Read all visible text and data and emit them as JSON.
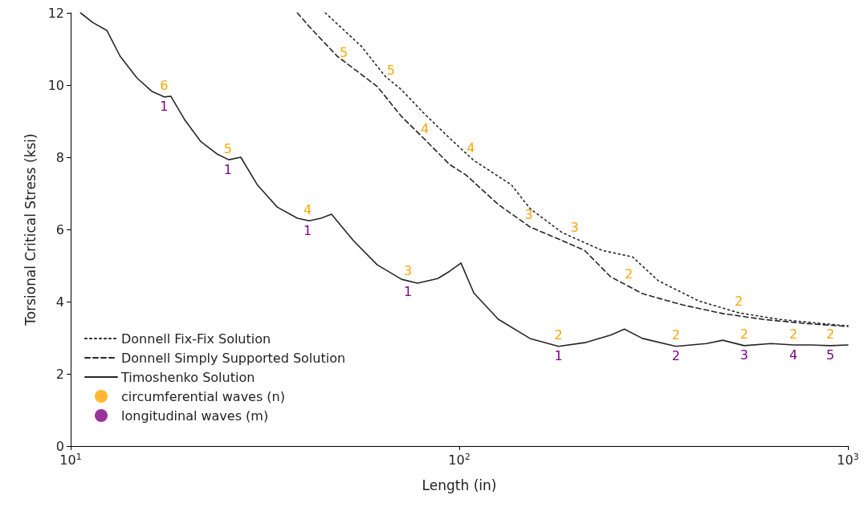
{
  "chart_data": {
    "type": "line",
    "xlabel": "Length (in)",
    "ylabel": "Torsional Critical Stress (ksi)",
    "log": "x",
    "grid": false,
    "legend": "bottom left",
    "xlim": [
      10,
      1000
    ],
    "xticks": [
      {
        "value": 10,
        "label": "10$^{1}$"
      },
      {
        "value": 100,
        "label": "10$^{2}$"
      },
      {
        "value": 1000,
        "label": "10$^{3}$"
      }
    ],
    "ylim": [
      0,
      12
    ],
    "yticks": [
      0,
      2,
      4,
      6,
      8,
      10,
      12
    ],
    "series": [
      {
        "name": "Donnell Fix-Fix Solution",
        "type": "line",
        "line_style": "dotted",
        "marker": "none",
        "color": "#262626",
        "x": [
          45.2,
          56.0,
          64.5,
          71,
          80.7,
          94.4,
          109,
          136,
          152,
          184,
          233,
          279,
          325,
          413,
          524,
          664,
          843,
          1000
        ],
        "values": [
          12,
          11.07,
          10.24,
          9.87,
          9.24,
          8.53,
          7.91,
          7.24,
          6.58,
          5.91,
          5.42,
          5.24,
          4.58,
          4.02,
          3.69,
          3.51,
          3.4,
          3.33
        ]
      },
      {
        "name": "Donnell Simply Supported Solution",
        "type": "line",
        "line_style": "dashed",
        "marker": "none",
        "color": "#262626",
        "x": [
          38.3,
          41.1,
          48.5,
          61.5,
          71,
          81.9,
          94.4,
          104,
          126,
          152,
          184,
          210,
          245,
          296,
          375,
          476,
          604,
          766,
          1000
        ],
        "values": [
          12,
          11.62,
          10.8,
          9.96,
          9.13,
          8.47,
          7.8,
          7.51,
          6.69,
          6.07,
          5.69,
          5.42,
          4.69,
          4.22,
          3.91,
          3.67,
          3.51,
          3.4,
          3.31
        ]
      },
      {
        "name": "Timoshenko Solution",
        "type": "line",
        "line_style": "solid",
        "marker": "none",
        "color": "#262626",
        "x": [
          10.6,
          11.4,
          12.4,
          13.4,
          14.8,
          16.2,
          17.4,
          18.1,
          19.7,
          21.6,
          23.8,
          25.5,
          27.4,
          30.2,
          34.0,
          38.3,
          41.1,
          44.1,
          46.9,
          53.4,
          61.5,
          71.0,
          78.1,
          88.0,
          94.4,
          101,
          109,
          126,
          152,
          180,
          212,
          245,
          266,
          296,
          361,
          433,
          476,
          541,
          634,
          724,
          804,
          901,
          1000
        ],
        "values": [
          12,
          11.73,
          11.51,
          10.8,
          10.2,
          9.82,
          9.67,
          9.69,
          9.02,
          8.44,
          8.09,
          7.93,
          8.0,
          7.24,
          6.62,
          6.31,
          6.24,
          6.31,
          6.42,
          5.69,
          5.02,
          4.62,
          4.51,
          4.64,
          4.84,
          5.07,
          4.24,
          3.51,
          2.98,
          2.76,
          2.87,
          3.07,
          3.24,
          2.98,
          2.76,
          2.84,
          2.93,
          2.78,
          2.84,
          2.8,
          2.8,
          2.78,
          2.8
        ]
      },
      {
        "name": "circumferential waves (n)",
        "type": "scatter",
        "marker": "circle",
        "color": "#ffa500"
      },
      {
        "name": "longitudinal waves (m)",
        "type": "scatter",
        "marker": "circle",
        "color": "#800080"
      }
    ],
    "annotations": [
      {
        "text": "6",
        "x": 17.4,
        "y": 9.67
      },
      {
        "text": "5",
        "x": 25.4,
        "y": 7.93
      },
      {
        "text": "4",
        "x": 40.7,
        "y": 6.24
      },
      {
        "text": "3",
        "x": 73.8,
        "y": 4.55
      },
      {
        "text": "2",
        "x": 180,
        "y": 2.76
      },
      {
        "text": "2",
        "x": 361,
        "y": 2.76
      },
      {
        "text": "2",
        "x": 541,
        "y": 2.78
      },
      {
        "text": "2",
        "x": 724,
        "y": 2.8
      },
      {
        "text": "2",
        "x": 901,
        "y": 2.78
      },
      {
        "text": "5",
        "x": 50.4,
        "y": 10.6
      },
      {
        "text": "4",
        "x": 81.5,
        "y": 8.47
      },
      {
        "text": "3",
        "x": 151,
        "y": 6.09
      },
      {
        "text": "2",
        "x": 273,
        "y": 4.45
      },
      {
        "text": "5",
        "x": 66.7,
        "y": 10.1
      },
      {
        "text": "4",
        "x": 107,
        "y": 7.95
      },
      {
        "text": "3",
        "x": 198,
        "y": 5.75
      },
      {
        "text": "2",
        "x": 524,
        "y": 3.69
      },
      {
        "text": "1",
        "x": 17.4,
        "y": 9.67
      },
      {
        "text": "1",
        "x": 25.4,
        "y": 7.93
      },
      {
        "text": "1",
        "x": 40.7,
        "y": 6.24
      },
      {
        "text": "1",
        "x": 73.8,
        "y": 4.55
      },
      {
        "text": "1",
        "x": 180,
        "y": 2.76
      },
      {
        "text": "2",
        "x": 361,
        "y": 2.76
      },
      {
        "text": "3",
        "x": 541,
        "y": 2.78
      },
      {
        "text": "4",
        "x": 724,
        "y": 2.8
      },
      {
        "text": "5",
        "x": 901,
        "y": 2.78
      }
    ]
  }
}
